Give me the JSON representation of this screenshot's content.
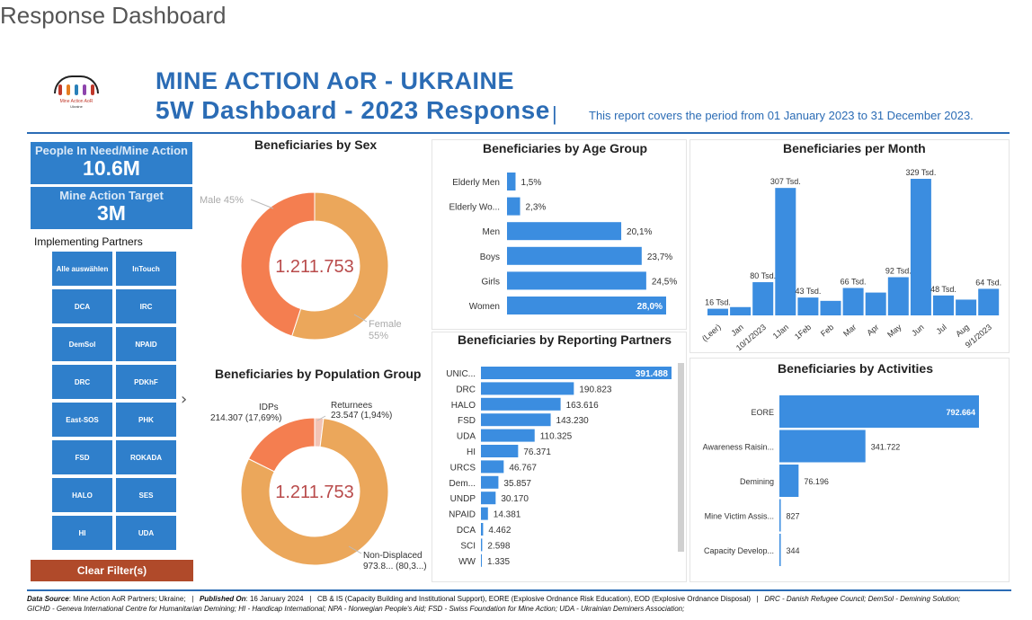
{
  "page_title": "Response Dashboard",
  "logo": {
    "line1": "Mine Action AoR",
    "line2": "Ukraine"
  },
  "header": {
    "title_line1": "MINE ACTION AoR - UKRAINE",
    "title_line2": "5W Dashboard - 2023 Response",
    "separator": "|",
    "period": "This report covers the period from 01 January 2023 to 31 December 2023.",
    "brand_color": "#2b6cb5"
  },
  "kpis": [
    {
      "label": "People In Need/Mine Action",
      "value": "10.6M"
    },
    {
      "label": "Mine Action Target",
      "value": "3M"
    }
  ],
  "partners": {
    "title": "Implementing Partners",
    "items": [
      "Alle auswählen",
      "InTouch",
      "DCA",
      "IRC",
      "DemSol",
      "NPAID",
      "DRC",
      "PDKhF",
      "East-SOS",
      "PHK",
      "FSD",
      "ROKADA",
      "HALO",
      "SES",
      "HI",
      "UDA"
    ],
    "chevron": "›",
    "clear_label": "Clear Filter(s)"
  },
  "colors": {
    "bar": "#3b8de0",
    "male": "#f47e50",
    "female": "#eba75b",
    "returnees": "#f2c4b5",
    "center_value": "#b94b4b",
    "slicer": "#2f7fcb",
    "clear": "#b04a2a"
  },
  "chart_data": [
    {
      "type": "pie",
      "title": "Beneficiaries by Sex",
      "center_label": "1.211.753",
      "labels": [
        "Male",
        "Female"
      ],
      "values": [
        45,
        55
      ],
      "label_texts": [
        "Male 45%",
        "Female",
        "55%"
      ]
    },
    {
      "type": "pie",
      "title": "Beneficiaries by Population Group",
      "center_label": "1.211.753",
      "labels": [
        "IDPs",
        "Returnees",
        "Non-Displaced"
      ],
      "values": [
        214307,
        23547,
        973899
      ],
      "label_texts": [
        "IDPs",
        "214.307 (17,69%)",
        "Returnees",
        "23.547 (1,94%)",
        "Non-Displaced",
        "973.8... (80,3...)"
      ]
    },
    {
      "type": "bar",
      "title": "Beneficiaries by Age Group",
      "orientation": "horizontal",
      "categories": [
        "Elderly Men",
        "Elderly Wo...",
        "Men",
        "Boys",
        "Girls",
        "Women"
      ],
      "values": [
        1.5,
        2.3,
        20.1,
        23.7,
        24.5,
        28.0
      ],
      "value_labels": [
        "1,5%",
        "2,3%",
        "20,1%",
        "23,7%",
        "24,5%",
        "28,0%"
      ]
    },
    {
      "type": "bar",
      "title": "Beneficiaries per Month",
      "orientation": "vertical",
      "categories": [
        "(Leer)",
        "Jan",
        "10/1/2023",
        "1Jan",
        "1Feb",
        "Feb",
        "Mar",
        "Apr",
        "May",
        "Jun",
        "Jul",
        "Aug",
        "9/1/2023"
      ],
      "values": [
        16,
        20,
        80,
        307,
        43,
        35,
        66,
        55,
        92,
        329,
        48,
        38,
        64
      ],
      "value_labels": [
        "16 Tsd.",
        "",
        "80 Tsd.",
        "307 Tsd.",
        "43 Tsd.",
        "",
        "66 Tsd.",
        "",
        "92 Tsd.",
        "329 Tsd.",
        "48 Tsd.",
        "",
        "64 Tsd."
      ]
    },
    {
      "type": "bar",
      "title": "Beneficiaries by Reporting Partners",
      "orientation": "horizontal",
      "categories": [
        "UNIC...",
        "DRC",
        "HALO",
        "FSD",
        "UDA",
        "HI",
        "URCS",
        "Dem...",
        "UNDP",
        "NPAID",
        "DCA",
        "SCI",
        "WW"
      ],
      "values": [
        391488,
        190823,
        163616,
        143230,
        110325,
        76371,
        46767,
        35857,
        30170,
        14381,
        4462,
        2598,
        1335
      ],
      "value_labels": [
        "391.488",
        "190.823",
        "163.616",
        "143.230",
        "110.325",
        "76.371",
        "46.767",
        "35.857",
        "30.170",
        "14.381",
        "4.462",
        "2.598",
        "1.335"
      ]
    },
    {
      "type": "bar",
      "title": "Beneficiaries by Activities",
      "orientation": "horizontal",
      "categories": [
        "EORE",
        "Awareness Raisin...",
        "Demining",
        "Mine Victim Assis...",
        "Capacity Develop..."
      ],
      "values": [
        792664,
        341722,
        76196,
        827,
        344
      ],
      "value_labels": [
        "792.664",
        "341.722",
        "76.196",
        "827",
        "344"
      ]
    }
  ],
  "footer": {
    "ds_label": "Data Source",
    "ds_text": ": Mine Action AoR Partners; Ukraine;",
    "sep": "|",
    "pub_label": "Published On",
    "pub_text": ": 16 January 2024",
    "abbr1": "CB & IS (Capacity Building and Institutional Support), EORE (Explosive Ordnance Risk Education), EOD (Explosive Ordnance Disposal)",
    "abbr2": "DRC - Danish Refugee Council; DemSol - Demining Solution;",
    "line2": "GICHD - Geneva International Centre for Humanitarian Demining; HI - Handicap International; NPA - Norwegian People's Aid; FSD - Swiss Foundation for Mine Action; UDA - Ukrainian Deminers Association;"
  }
}
